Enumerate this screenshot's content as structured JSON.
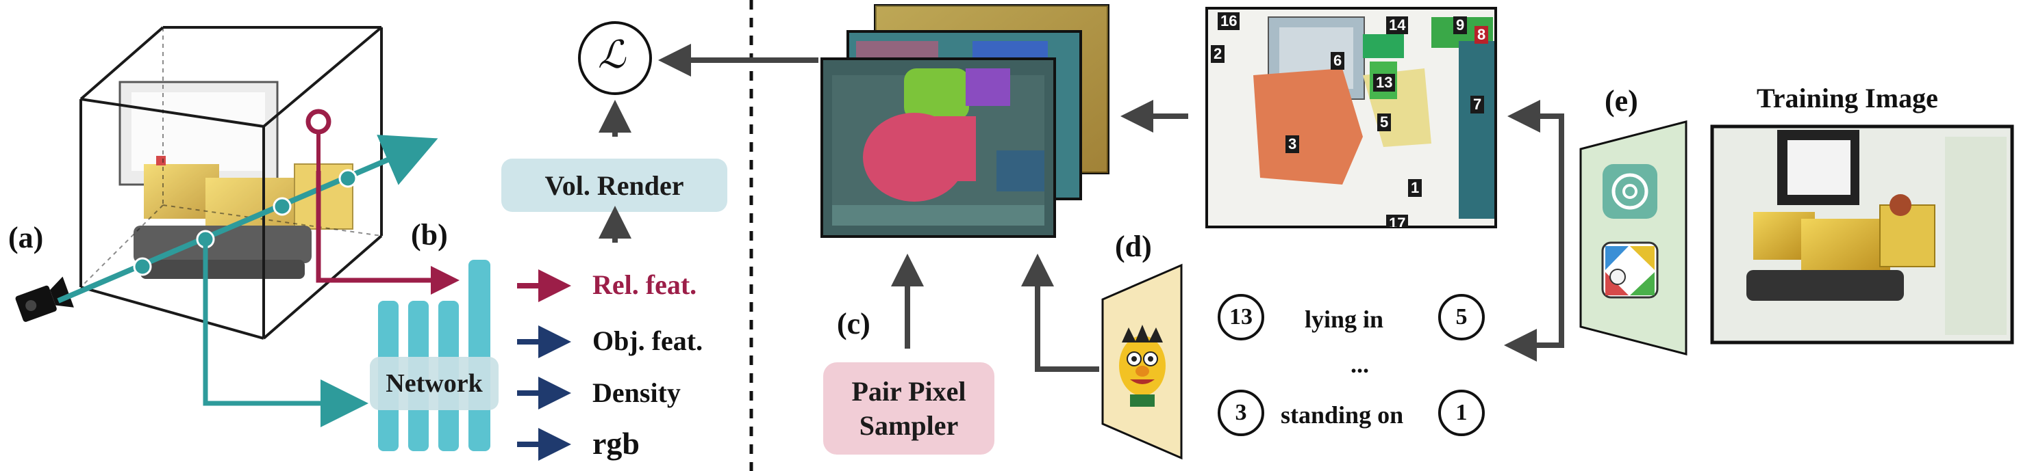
{
  "panels": {
    "a": "(a)",
    "b": "(b)",
    "c": "(c)",
    "d": "(d)",
    "e": "(e)"
  },
  "loss_symbol": "ℒ",
  "vol_render": "Vol. Render",
  "network": "Network",
  "outputs": [
    {
      "label": "Rel. feat.",
      "color": "#9c1e48"
    },
    {
      "label": "Obj. feat.",
      "color": "#1f3a6e"
    },
    {
      "label": "Density",
      "color": "#1f3a6e"
    },
    {
      "label": "rgb",
      "color": "#1f3a6e"
    }
  ],
  "pair_sampler": [
    "Pair Pixel",
    "Sampler"
  ],
  "relations": [
    {
      "subject": "13",
      "predicate": "lying in",
      "object": "5"
    },
    {
      "ellipsis": "..."
    },
    {
      "subject": "3",
      "predicate": "standing on",
      "object": "1"
    }
  ],
  "segment_ids": [
    "16",
    "14",
    "9",
    "8",
    "2",
    "6",
    "13",
    "7",
    "5",
    "3",
    "1",
    "17"
  ],
  "training_title": "Training Image",
  "colors": {
    "teal": "#2e9b9b",
    "crimson": "#9c1e48",
    "navy": "#1f3a6e",
    "vol_box": "#cfe5ea",
    "sampler_box": "#f1cdd6",
    "gpt_panel": "#d9ead2",
    "bert_panel": "#f6e7b8"
  }
}
